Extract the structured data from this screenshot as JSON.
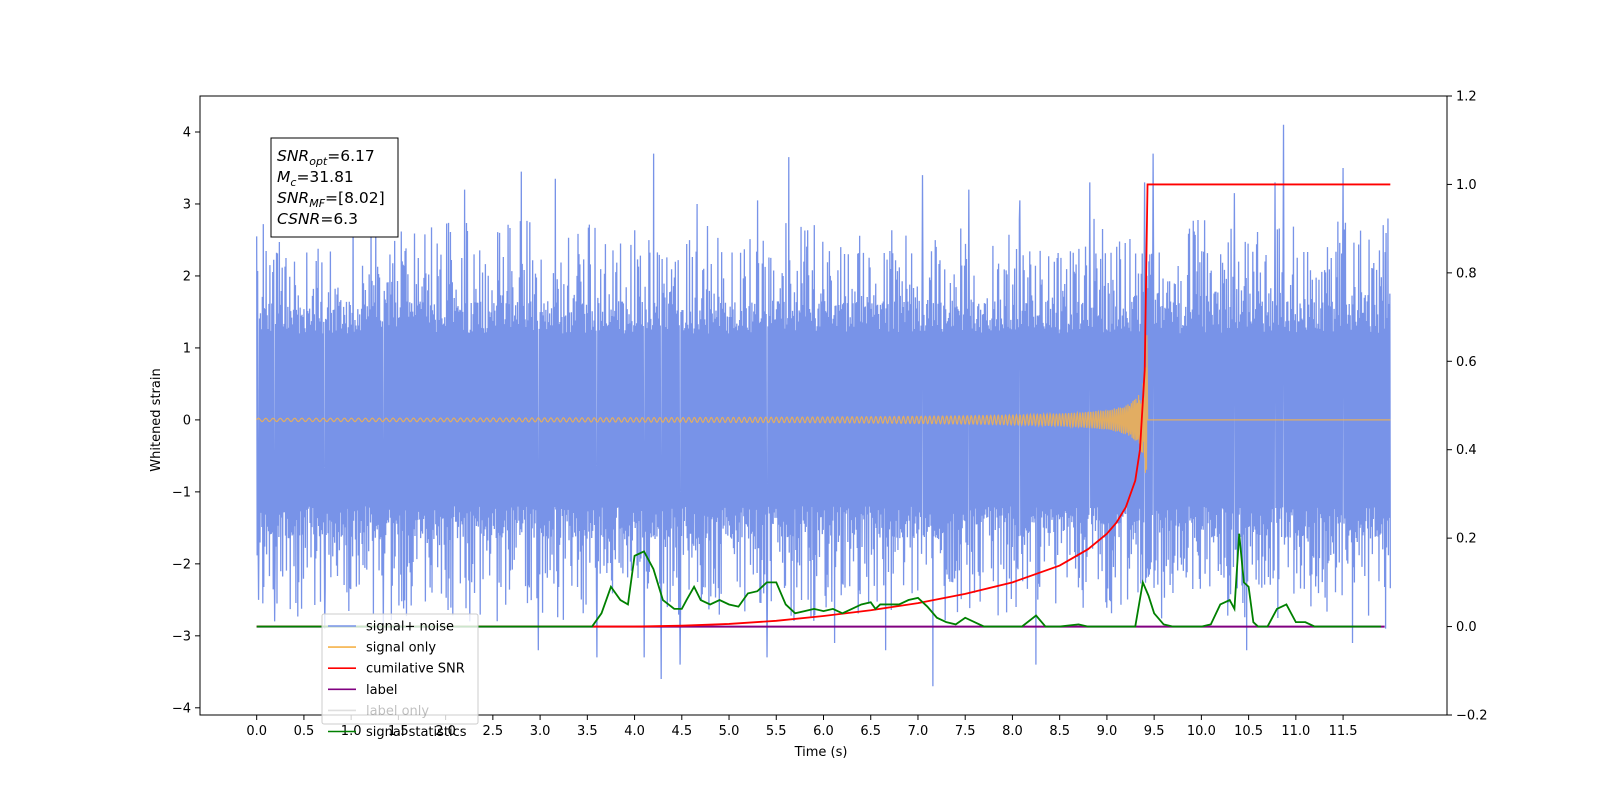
{
  "chart_data": {
    "type": "line",
    "xlabel": "Time (s)",
    "ylabel": "Whitened strain",
    "xlim": [
      -0.6,
      12.6
    ],
    "ylim_left": [
      -4.1,
      4.5
    ],
    "ylim_right": [
      -0.2,
      1.2
    ],
    "x_ticks": [
      0.0,
      0.5,
      1.0,
      1.5,
      2.0,
      2.5,
      3.0,
      3.5,
      4.0,
      4.5,
      5.0,
      5.5,
      6.0,
      6.5,
      7.0,
      7.5,
      8.0,
      8.5,
      9.0,
      9.5,
      10.0,
      10.5,
      11.0,
      11.5
    ],
    "x_tick_labels": [
      "0.0",
      "0.5",
      "1.0",
      "1.5",
      "2.0",
      "2.5",
      "3.0",
      "3.5",
      "4.0",
      "4.5",
      "5.0",
      "5.5",
      "6.0",
      "6.5",
      "7.0",
      "7.5",
      "8.0",
      "8.5",
      "9.0",
      "9.5",
      "10.0",
      "10.5",
      "11.0",
      "11.5"
    ],
    "y_left_ticks": [
      -4,
      -3,
      -2,
      -1,
      0,
      1,
      2,
      3,
      4
    ],
    "y_left_tick_labels": [
      "−4",
      "−3",
      "−2",
      "−1",
      "0",
      "1",
      "2",
      "3",
      "4"
    ],
    "y_right_ticks": [
      -0.2,
      0.0,
      0.2,
      0.4,
      0.6,
      0.8,
      1.0,
      1.2
    ],
    "y_right_tick_labels": [
      "−0.2",
      "0.0",
      "0.2",
      "0.4",
      "0.6",
      "0.8",
      "1.0",
      "1.2"
    ],
    "grid": false,
    "legend_position": "lower-left",
    "annotation": {
      "lines": [
        {
          "sym": "SNR",
          "sub": "opt",
          "rest": "=6.17"
        },
        {
          "sym": "M",
          "sub": "c",
          "rest": "=31.81"
        },
        {
          "sym": "SNR",
          "sub": "MF",
          "rest": "=[8.02]"
        },
        {
          "sym": "CSNR",
          "sub": "",
          "rest": "=6.3"
        }
      ]
    },
    "series": [
      {
        "name": "signal+ noise",
        "axis": "left",
        "color": "#7893e8",
        "kind": "noise",
        "x_range": [
          0.0,
          12.0
        ],
        "band": [
          -1.5,
          1.5
        ],
        "typical_range": [
          -2.6,
          2.8
        ],
        "spikes": [
          {
            "x": 0.02,
            "y": -2.5
          },
          {
            "x": 0.19,
            "y": -2.8
          },
          {
            "x": 0.72,
            "y": -2.9
          },
          {
            "x": 1.02,
            "y": 3.1
          },
          {
            "x": 1.34,
            "y": -2.9
          },
          {
            "x": 2.2,
            "y": 3.2
          },
          {
            "x": 2.8,
            "y": 3.45
          },
          {
            "x": 2.98,
            "y": -3.2
          },
          {
            "x": 3.16,
            "y": 3.35
          },
          {
            "x": 3.6,
            "y": -3.3
          },
          {
            "x": 4.1,
            "y": -3.3
          },
          {
            "x": 4.28,
            "y": -3.6
          },
          {
            "x": 4.2,
            "y": 3.7
          },
          {
            "x": 4.48,
            "y": -3.4
          },
          {
            "x": 4.66,
            "y": 3.0
          },
          {
            "x": 5.3,
            "y": 3.05
          },
          {
            "x": 5.4,
            "y": -3.3
          },
          {
            "x": 5.63,
            "y": 3.65
          },
          {
            "x": 6.12,
            "y": -3.1
          },
          {
            "x": 6.66,
            "y": -3.2
          },
          {
            "x": 7.05,
            "y": 3.4
          },
          {
            "x": 7.16,
            "y": -3.7
          },
          {
            "x": 7.54,
            "y": 3.2
          },
          {
            "x": 8.08,
            "y": 3.05
          },
          {
            "x": 8.25,
            "y": -3.4
          },
          {
            "x": 8.82,
            "y": 3.3
          },
          {
            "x": 9.49,
            "y": 3.7
          },
          {
            "x": 9.4,
            "y": 3.3
          },
          {
            "x": 10.35,
            "y": 3.15
          },
          {
            "x": 10.78,
            "y": 3.3
          },
          {
            "x": 10.87,
            "y": 4.1
          },
          {
            "x": 10.48,
            "y": -3.2
          },
          {
            "x": 11.5,
            "y": 3.5
          },
          {
            "x": 11.6,
            "y": -3.1
          },
          {
            "x": 11.95,
            "y": -2.9
          }
        ]
      },
      {
        "name": "signal only",
        "axis": "left",
        "color": "#f5b24a",
        "kind": "chirp",
        "x_range": [
          0.0,
          12.0
        ],
        "merger_time": 9.43,
        "peak_amplitude": 1.6
      },
      {
        "name": "cumilative SNR",
        "axis": "right",
        "color": "#ff0000",
        "x": [
          0.0,
          4.0,
          4.5,
          5.0,
          5.5,
          6.0,
          6.5,
          7.0,
          7.5,
          8.0,
          8.5,
          8.8,
          9.0,
          9.1,
          9.2,
          9.3,
          9.35,
          9.4,
          9.43,
          9.5,
          10.0,
          11.0,
          12.0
        ],
        "values": [
          0.0,
          0.0,
          0.002,
          0.006,
          0.013,
          0.024,
          0.037,
          0.053,
          0.074,
          0.1,
          0.138,
          0.175,
          0.21,
          0.235,
          0.27,
          0.33,
          0.4,
          0.58,
          1.0,
          1.0,
          1.0,
          1.0,
          1.0
        ]
      },
      {
        "name": "label",
        "axis": "right",
        "color": "#800080",
        "x": [
          0.0,
          11.94
        ],
        "values": [
          0.0,
          0.0
        ]
      },
      {
        "name": "label only",
        "axis": "right",
        "color": "#808080",
        "visible": false,
        "x": [],
        "values": []
      },
      {
        "name": "signal statistics",
        "axis": "right",
        "color": "#008000",
        "x": [
          0.0,
          3.3,
          3.55,
          3.65,
          3.75,
          3.85,
          3.93,
          4.0,
          4.1,
          4.2,
          4.3,
          4.42,
          4.5,
          4.55,
          4.63,
          4.7,
          4.8,
          4.9,
          5.0,
          5.1,
          5.2,
          5.3,
          5.4,
          5.5,
          5.6,
          5.7,
          5.8,
          5.9,
          6.0,
          6.1,
          6.2,
          6.3,
          6.4,
          6.5,
          6.55,
          6.6,
          6.7,
          6.8,
          6.9,
          7.0,
          7.1,
          7.2,
          7.3,
          7.4,
          7.5,
          7.6,
          7.7,
          8.1,
          8.25,
          8.35,
          8.5,
          8.7,
          8.8,
          9.3,
          9.38,
          9.44,
          9.5,
          9.6,
          9.7,
          9.8,
          10.0,
          10.1,
          10.2,
          10.3,
          10.35,
          10.4,
          10.45,
          10.5,
          10.55,
          10.6,
          10.7,
          10.8,
          10.9,
          11.0,
          11.1,
          11.2,
          11.3,
          11.9
        ],
        "values": [
          0.0,
          0.0,
          0.0,
          0.03,
          0.09,
          0.06,
          0.05,
          0.16,
          0.17,
          0.13,
          0.06,
          0.04,
          0.04,
          0.06,
          0.09,
          0.06,
          0.05,
          0.06,
          0.05,
          0.045,
          0.075,
          0.08,
          0.1,
          0.1,
          0.05,
          0.03,
          0.035,
          0.04,
          0.035,
          0.04,
          0.03,
          0.04,
          0.05,
          0.055,
          0.04,
          0.05,
          0.05,
          0.05,
          0.06,
          0.065,
          0.045,
          0.02,
          0.01,
          0.005,
          0.02,
          0.01,
          0.0,
          0.0,
          0.025,
          0.0,
          0.0,
          0.005,
          0.0,
          0.0,
          0.1,
          0.07,
          0.03,
          0.005,
          0.0,
          0.0,
          0.0,
          0.005,
          0.05,
          0.06,
          0.04,
          0.21,
          0.1,
          0.09,
          0.01,
          0.0,
          0.0,
          0.04,
          0.05,
          0.01,
          0.01,
          0.0,
          0.0,
          0.0
        ]
      }
    ]
  }
}
